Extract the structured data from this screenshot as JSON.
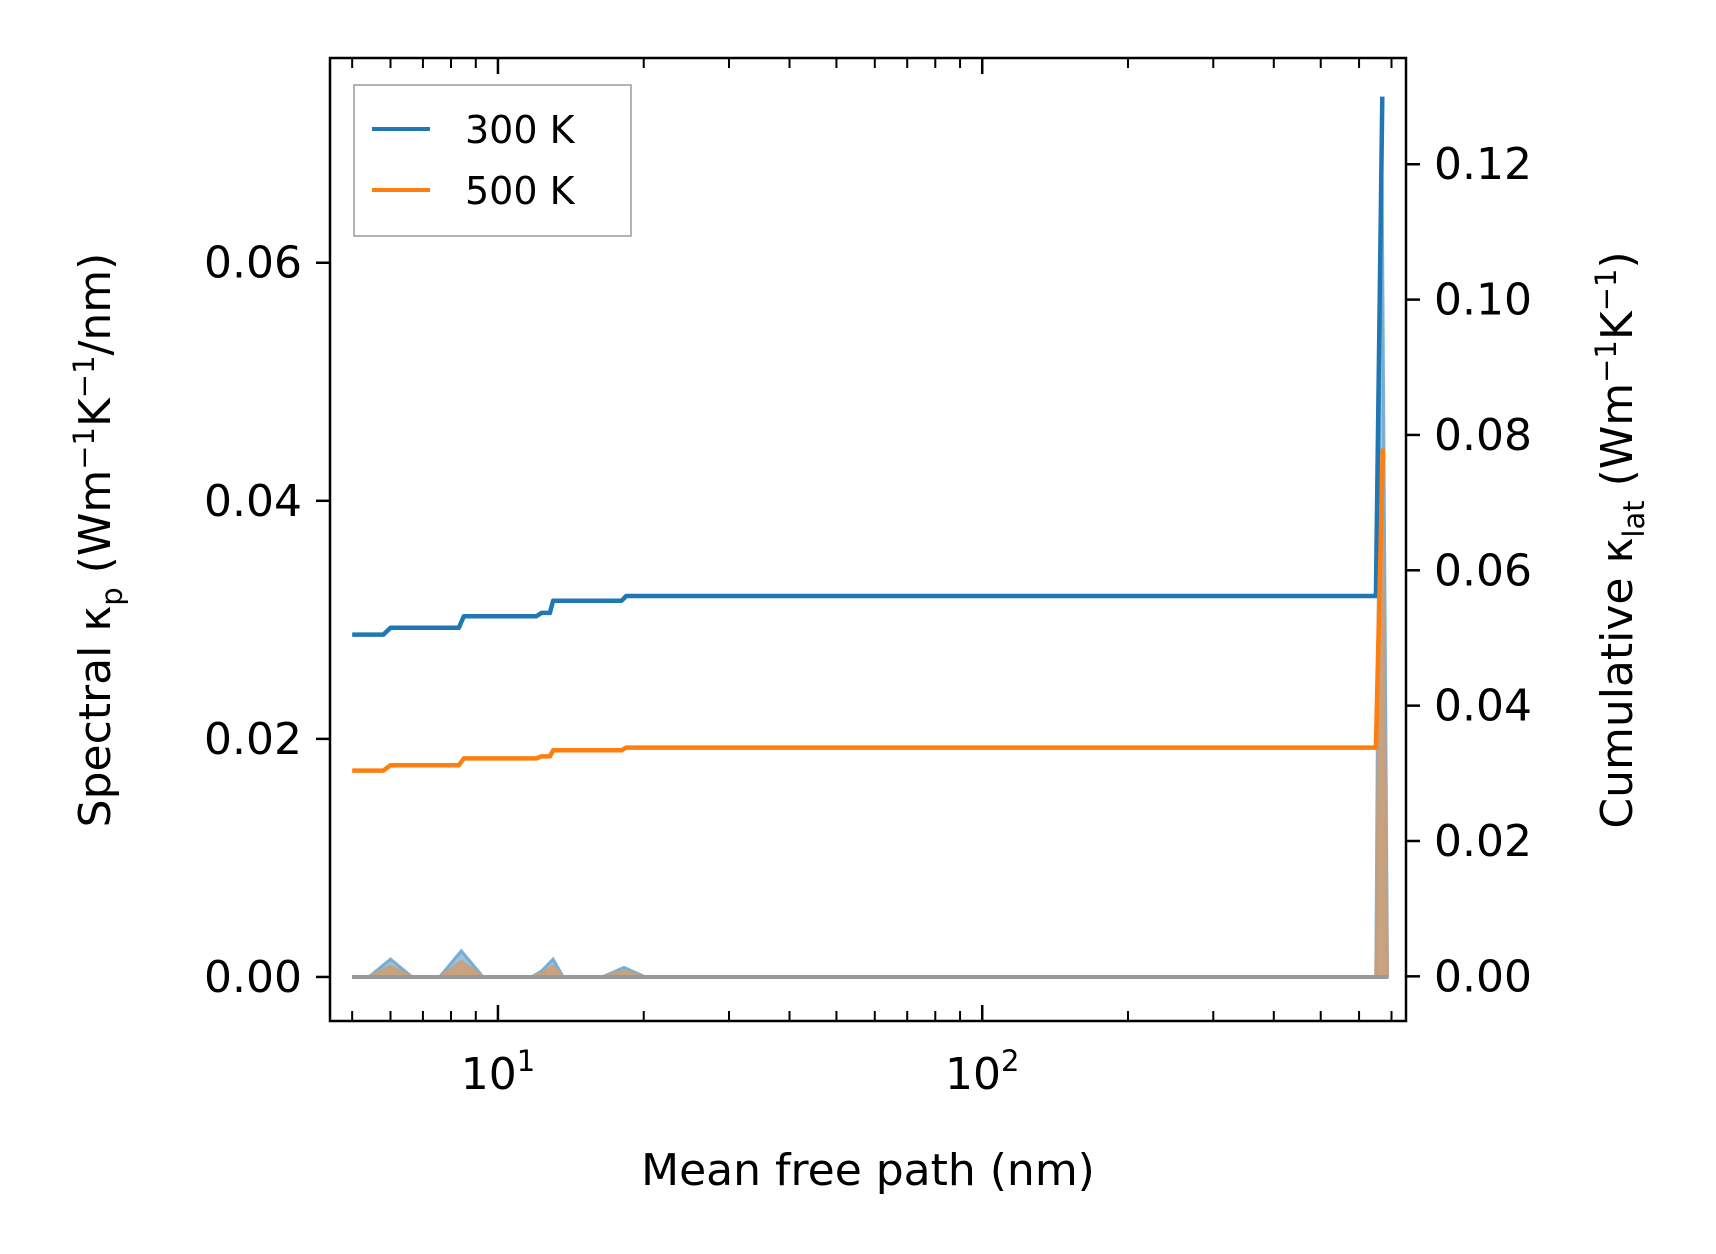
{
  "chart_data": {
    "type": "line",
    "xlabel": "Mean free path (nm)",
    "xscale": "log",
    "xlim": [
      4.5,
      750
    ],
    "x_ticks": [
      {
        "value": 10,
        "base": "10",
        "exp": "1"
      },
      {
        "value": 100,
        "base": "10",
        "exp": "2"
      }
    ],
    "left_axis": {
      "label_parts": {
        "pre": "Spectral κ",
        "sub": "p",
        "mid": " (Wm",
        "sup1": "−1",
        "mid2": "K",
        "sup2": "−1",
        "post": "/nm)"
      },
      "ylim": [
        -0.0037,
        0.0772
      ],
      "ticks": [
        "0.00",
        "0.02",
        "0.04",
        "0.06"
      ],
      "tick_values": [
        0,
        0.02,
        0.04,
        0.06
      ]
    },
    "right_axis": {
      "label_parts": {
        "pre": "Cumulative κ",
        "sub": "lat",
        "mid": " (Wm",
        "sup1": "−1",
        "mid2": "K",
        "sup2": "−1",
        "post": ")"
      },
      "ylim": [
        -0.0066,
        0.1357
      ],
      "ticks": [
        "0.00",
        "0.02",
        "0.04",
        "0.06",
        "0.08",
        "0.10",
        "0.12"
      ],
      "tick_values": [
        0,
        0.02,
        0.04,
        0.06,
        0.08,
        0.1,
        0.12
      ]
    },
    "legend": {
      "position": "top-left"
    },
    "series": [
      {
        "name": "300 K",
        "color": "#1f77b4",
        "axis": "right",
        "cumulative": [
          [
            5,
            0.0505
          ],
          [
            5.8,
            0.0505
          ],
          [
            6.0,
            0.0515
          ],
          [
            8.3,
            0.0515
          ],
          [
            8.5,
            0.0532
          ],
          [
            12.0,
            0.0532
          ],
          [
            12.3,
            0.0537
          ],
          [
            12.8,
            0.0537
          ],
          [
            13.0,
            0.0555
          ],
          [
            18.0,
            0.0555
          ],
          [
            18.4,
            0.0562
          ],
          [
            650,
            0.0562
          ],
          [
            670,
            0.13
          ]
        ]
      },
      {
        "name": "500 K",
        "color": "#ff7f0e",
        "axis": "right",
        "cumulative": [
          [
            5,
            0.0304
          ],
          [
            5.8,
            0.0304
          ],
          [
            6.0,
            0.0312
          ],
          [
            8.3,
            0.0312
          ],
          [
            8.5,
            0.0322
          ],
          [
            12.0,
            0.0322
          ],
          [
            12.3,
            0.0325
          ],
          [
            12.8,
            0.0325
          ],
          [
            13.0,
            0.0334
          ],
          [
            18.0,
            0.0334
          ],
          [
            18.4,
            0.0338
          ],
          [
            650,
            0.0338
          ],
          [
            672,
            0.078
          ]
        ]
      }
    ],
    "spectral": [
      {
        "name": "300 K",
        "color": "#1f77b4",
        "peaks": [
          [
            6.0,
            0.0015
          ],
          [
            8.4,
            0.0022
          ],
          [
            12.3,
            0.0005
          ],
          [
            13.0,
            0.0015
          ],
          [
            18.2,
            0.0008
          ],
          [
            668,
            0.0735
          ]
        ]
      },
      {
        "name": "500 K",
        "color": "#ff7f0e",
        "peaks": [
          [
            6.0,
            0.0009
          ],
          [
            8.4,
            0.0013
          ],
          [
            12.3,
            0.0003
          ],
          [
            13.0,
            0.0009
          ],
          [
            18.2,
            0.0005
          ],
          [
            668,
            0.044
          ]
        ]
      }
    ]
  }
}
